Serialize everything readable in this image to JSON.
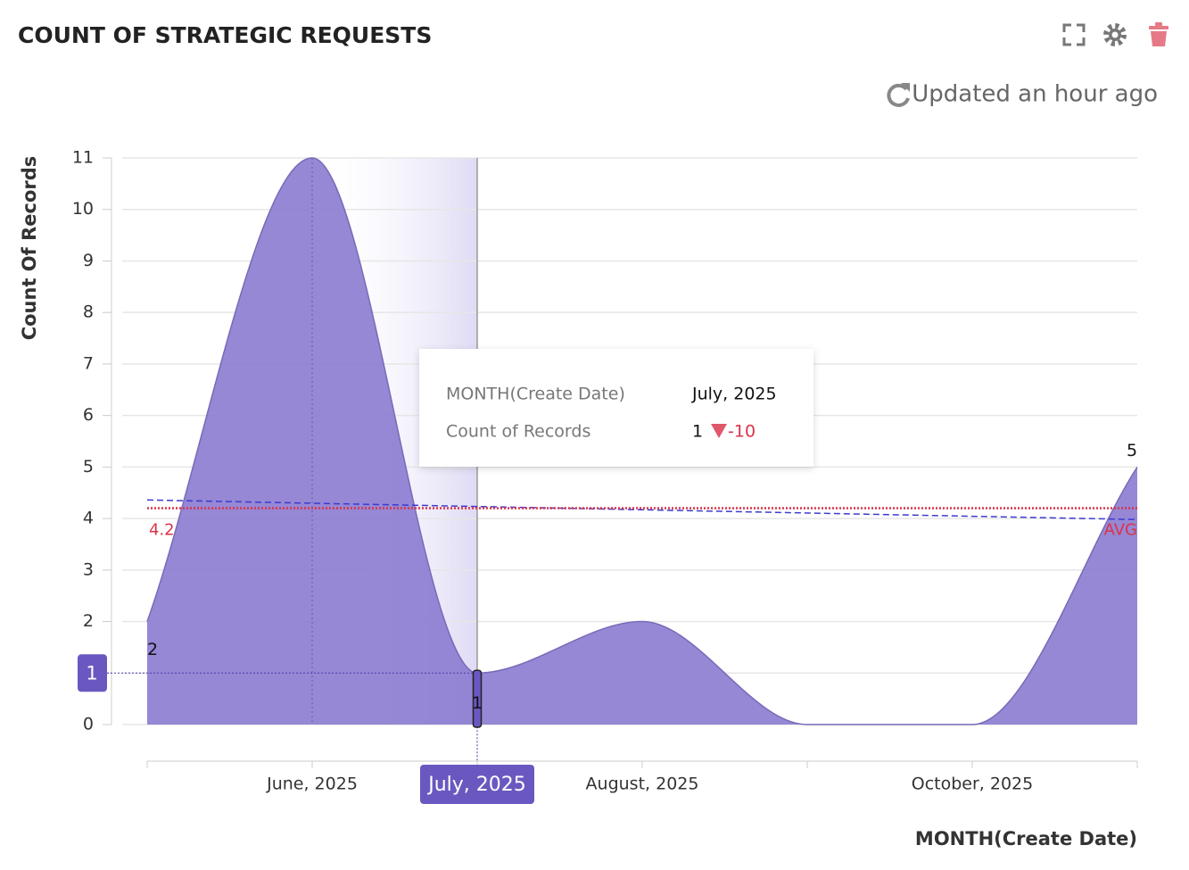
{
  "header": {
    "title": "COUNT OF STRATEGIC REQUESTS",
    "updated": "Updated an hour ago"
  },
  "chart_data": {
    "type": "area",
    "x_label": "MONTH(Create Date)",
    "y_label": "Count Of Records",
    "categories": [
      null,
      "June, 2025",
      "July, 2025",
      "August, 2025",
      null,
      "October, 2025",
      null
    ],
    "series": [
      {
        "name": "Count of Records",
        "color": "#8b7bd0",
        "values": [
          2,
          11,
          1,
          2,
          0,
          0,
          5
        ]
      }
    ],
    "ylim": [
      0,
      11
    ],
    "yticks": [
      0,
      1,
      2,
      3,
      4,
      5,
      6,
      7,
      8,
      9,
      10,
      11
    ],
    "grid": true,
    "average": {
      "value": 4.2,
      "label": "AVG",
      "color": "#d9334a"
    },
    "trendline": {
      "start": 4.36,
      "end": 3.98,
      "color": "#3b3bd0"
    },
    "highlight_index": 2,
    "tooltip": {
      "rows": [
        {
          "label": "MONTH(Create Date)",
          "value": "July, 2025"
        },
        {
          "label": "Count of Records",
          "value": 1,
          "change": -10
        }
      ]
    }
  }
}
